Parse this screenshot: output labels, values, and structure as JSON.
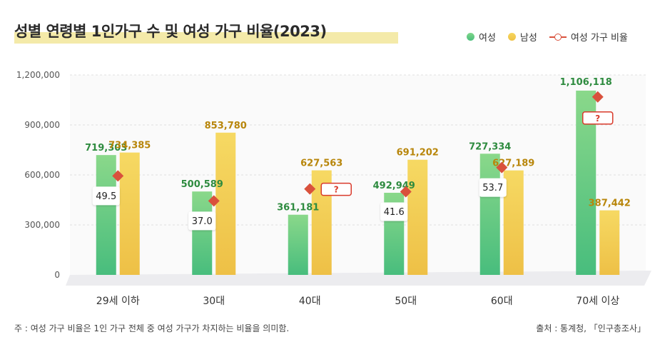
{
  "header": {
    "title": "성별 연령별 1인가구 수 및 여성 가구 비율(2023)"
  },
  "legend": {
    "female": "여성",
    "male": "남성",
    "ratio": "여성 가구 비율"
  },
  "footer": {
    "note": "주 : 여성 가구 비율은 1인 가구 전체 중 여성 가구가 차지하는 비율을 의미함.",
    "source": "출처 : 통계청, 「인구총조사」"
  },
  "colors": {
    "female": "#5cc97a",
    "male": "#f2c94c",
    "ratio": "#d9513c",
    "female_label": "#2e8b3f",
    "male_label": "#b8860b"
  },
  "chart_data": {
    "type": "bar",
    "categories": [
      "29세 이하",
      "30대",
      "40대",
      "50대",
      "60대",
      "70세 이상"
    ],
    "series": [
      {
        "name": "여성",
        "values": [
          719303,
          500589,
          361181,
          492949,
          727334,
          1106118
        ],
        "labels": [
          "719,303",
          "500,589",
          "361,181",
          "492,949",
          "727,334",
          "1,106,118"
        ]
      },
      {
        "name": "남성",
        "values": [
          734385,
          853780,
          627563,
          691202,
          627189,
          387442
        ],
        "labels": [
          "734,385",
          "853,780",
          "627,563",
          "691,202",
          "627,189",
          "387,442"
        ]
      }
    ],
    "ratio_series": {
      "name": "여성 가구 비율",
      "values": [
        49.5,
        37.0,
        null,
        41.6,
        53.7,
        null
      ],
      "labels": [
        "49.5",
        "37.0",
        "?",
        "41.6",
        "53.7",
        "?"
      ]
    },
    "yticks": [
      "1,200,000",
      "900,000",
      "600,000",
      "300,000",
      "0"
    ],
    "ytick_values": [
      1200000,
      900000,
      600000,
      300000,
      0
    ],
    "ylim": [
      0,
      1200000
    ],
    "grid": true,
    "legend_position": "top-right"
  }
}
